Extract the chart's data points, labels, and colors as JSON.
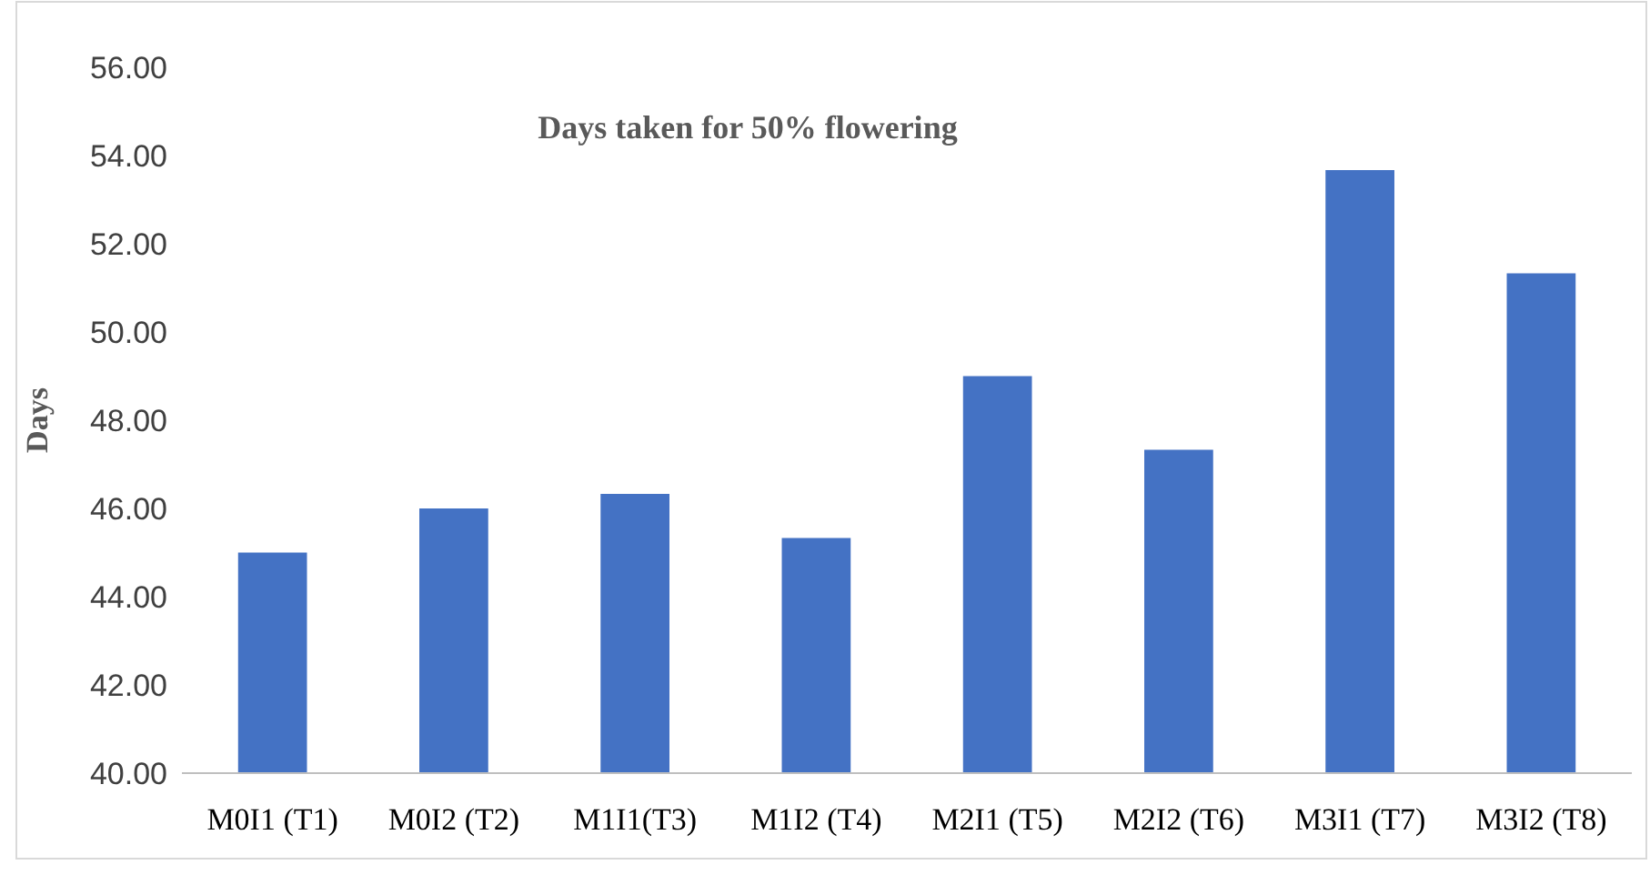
{
  "chart_data": {
    "type": "bar",
    "title": "Days taken for 50% flowering",
    "ylabel": "Days",
    "categories": [
      "M0I1 (T1)",
      "M0I2 (T2)",
      "M1I1(T3)",
      "M1I2 (T4)",
      "M2I1 (T5)",
      "M2I2 (T6)",
      "M3I1 (T7)",
      "M3I2 (T8)"
    ],
    "values": [
      45.0,
      46.0,
      46.33,
      45.33,
      49.0,
      47.33,
      53.67,
      51.33
    ],
    "color": "#4472c4",
    "ylim": [
      40,
      56
    ],
    "yticks": [
      {
        "value": 40,
        "label": "40.00"
      },
      {
        "value": 42,
        "label": "42.00"
      },
      {
        "value": 44,
        "label": "44.00"
      },
      {
        "value": 46,
        "label": "46.00"
      },
      {
        "value": 48,
        "label": "48.00"
      },
      {
        "value": 50,
        "label": "50.00"
      },
      {
        "value": 52,
        "label": "52.00"
      },
      {
        "value": 54,
        "label": "54.00"
      },
      {
        "value": 56,
        "label": "56.00"
      }
    ],
    "grid": false
  }
}
